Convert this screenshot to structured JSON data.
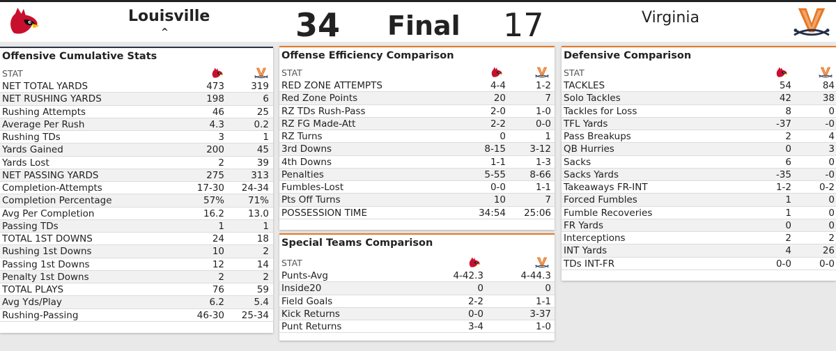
{
  "header": {
    "home_team": "Louisville",
    "home_score": "34",
    "status": "Final",
    "away_score": "17",
    "away_team": "Virginia",
    "sort_caret": "^",
    "home_logo": "cardinal-logo-icon",
    "away_logo": "virginia-sabres-logo-icon"
  },
  "colors": {
    "louisville_red": "#c8102e",
    "virginia_orange": "#e87722",
    "virginia_navy": "#232d4b",
    "dark_rule": "#2c3447"
  },
  "offensive": {
    "title": "Offensive Cumulative Stats",
    "stat_header": "STAT",
    "rows": [
      [
        "NET TOTAL YARDS",
        "473",
        "319"
      ],
      [
        "NET RUSHING YARDS",
        "198",
        "6"
      ],
      [
        "Rushing Attempts",
        "46",
        "25"
      ],
      [
        "Average Per Rush",
        "4.3",
        "0.2"
      ],
      [
        "Rushing TDs",
        "3",
        "1"
      ],
      [
        "Yards Gained",
        "200",
        "45"
      ],
      [
        "Yards Lost",
        "2",
        "39"
      ],
      [
        "NET PASSING YARDS",
        "275",
        "313"
      ],
      [
        "Completion-Attempts",
        "17-30",
        "24-34"
      ],
      [
        "Completion Percentage",
        "57%",
        "71%"
      ],
      [
        "Avg Per Completion",
        "16.2",
        "13.0"
      ],
      [
        "Passing TDs",
        "1",
        "1"
      ],
      [
        "TOTAL 1ST DOWNS",
        "24",
        "18"
      ],
      [
        "Rushing 1st Downs",
        "10",
        "2"
      ],
      [
        "Passing 1st Downs",
        "12",
        "14"
      ],
      [
        "Penalty 1st Downs",
        "2",
        "2"
      ],
      [
        "TOTAL PLAYS",
        "76",
        "59"
      ],
      [
        "Avg Yds/Play",
        "6.2",
        "5.4"
      ],
      [
        "Rushing-Passing",
        "46-30",
        "25-34"
      ]
    ]
  },
  "efficiency": {
    "title": "Offense Efficiency Comparison",
    "stat_header": "STAT",
    "rows": [
      [
        "RED ZONE ATTEMPTS",
        "4-4",
        "1-2"
      ],
      [
        "Red Zone Points",
        "20",
        "7"
      ],
      [
        "RZ TDs Rush-Pass",
        "2-0",
        "1-0"
      ],
      [
        "RZ FG Made-Att",
        "2-2",
        "0-0"
      ],
      [
        "RZ Turns",
        "0",
        "1"
      ],
      [
        "3rd Downs",
        "8-15",
        "3-12"
      ],
      [
        "4th Downs",
        "1-1",
        "1-3"
      ],
      [
        "Penalties",
        "5-55",
        "8-66"
      ],
      [
        "Fumbles-Lost",
        "0-0",
        "1-1"
      ],
      [
        "Pts Off Turns",
        "10",
        "7"
      ],
      [
        "POSSESSION TIME",
        "34:54",
        "25:06"
      ]
    ]
  },
  "special": {
    "title": "Special Teams Comparison",
    "stat_header": "STAT",
    "rows": [
      [
        "Punts-Avg",
        "4-42.3",
        "4-44.3"
      ],
      [
        "Inside20",
        "0",
        "0"
      ],
      [
        "Field Goals",
        "2-2",
        "1-1"
      ],
      [
        "Kick Returns",
        "0-0",
        "3-37"
      ],
      [
        "Punt Returns",
        "3-4",
        "1-0"
      ]
    ]
  },
  "defensive": {
    "title": "Defensive Comparison",
    "stat_header": "STAT",
    "rows": [
      [
        "TACKLES",
        "54",
        "84"
      ],
      [
        "Solo Tackles",
        "42",
        "38"
      ],
      [
        "Tackles for Loss",
        "8",
        "0"
      ],
      [
        "TFL Yards",
        "-37",
        "-0"
      ],
      [
        "Pass Breakups",
        "2",
        "4"
      ],
      [
        "QB Hurries",
        "0",
        "3"
      ],
      [
        "Sacks",
        "6",
        "0"
      ],
      [
        "Sacks Yards",
        "-35",
        "-0"
      ],
      [
        "Takeaways FR-INT",
        "1-2",
        "0-2"
      ],
      [
        "Forced Fumbles",
        "1",
        "0"
      ],
      [
        "Fumble Recoveries",
        "1",
        "0"
      ],
      [
        "FR Yards",
        "0",
        "0"
      ],
      [
        "Interceptions",
        "2",
        "2"
      ],
      [
        "INT Yards",
        "4",
        "26"
      ],
      [
        "TDs INT-FR",
        "0-0",
        "0-0"
      ]
    ]
  }
}
